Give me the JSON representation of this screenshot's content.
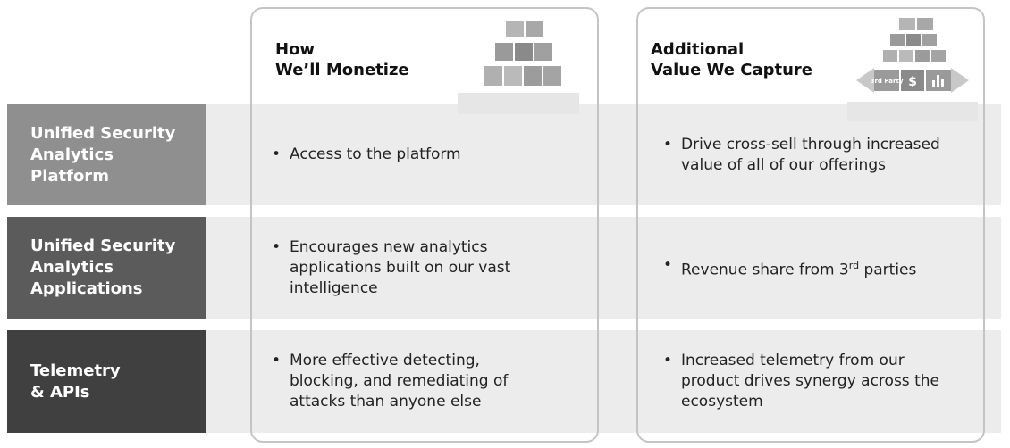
{
  "columns": [
    {
      "title_lines": [
        "How",
        "We’ll Monetize"
      ]
    },
    {
      "title_lines": [
        "Additional",
        "Value We Capture"
      ]
    }
  ],
  "rows": [
    {
      "label_lines": [
        "Unified Security",
        "Analytics",
        "Platform"
      ],
      "cells": [
        {
          "bullet": "Access to the platform"
        },
        {
          "bullet": "Drive cross-sell through increased value of all of our offerings"
        }
      ]
    },
    {
      "label_lines": [
        "Unified Security",
        "Analytics",
        "Applications"
      ],
      "cells": [
        {
          "bullet": "Encourages new analytics applications built on our vast intelligence"
        },
        {
          "bullet_parts": [
            "Revenue share from 3",
            "rd",
            " parties"
          ]
        }
      ]
    },
    {
      "label_lines": [
        "Telemetry",
        "& APIs"
      ],
      "cells": [
        {
          "bullet": "More effective detecting, blocking, and remediating of attacks than anyone else"
        },
        {
          "bullet": "Increased telemetry from our product drives synergy across the ecosystem"
        }
      ]
    }
  ],
  "icon_labels": {
    "party": "3rd Party",
    "dollar": "$"
  }
}
